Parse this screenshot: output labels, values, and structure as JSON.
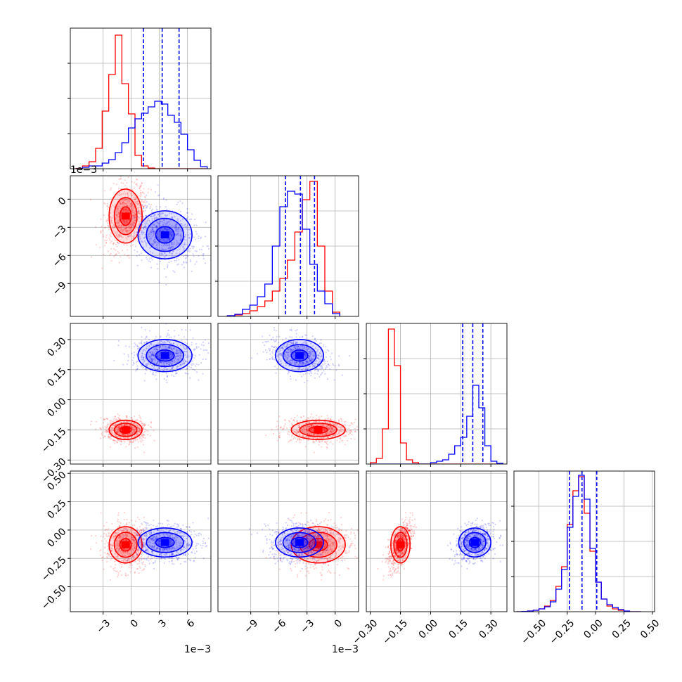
{
  "chart_data": {
    "type": "corner",
    "colors": {
      "red": "#ff0000",
      "blue": "#0000ff",
      "grid": "#b0b0b0",
      "axis": "#000000"
    },
    "series": [
      {
        "color": "red"
      },
      {
        "color": "blue"
      }
    ],
    "parameters": [
      {
        "range": [
          -0.0065,
          0.0085
        ],
        "ticks": [
          -3,
          0,
          3,
          6
        ],
        "tick_labels": [
          "−3",
          "0",
          "3",
          "6"
        ],
        "tick_scale": 0.001,
        "offset_label": "1e−3"
      },
      {
        "range": [
          -0.0125,
          0.0025
        ],
        "ticks": [
          -9,
          -6,
          -3,
          0
        ],
        "tick_labels": [
          "−9",
          "−6",
          "−3",
          "0"
        ],
        "tick_scale": 0.001,
        "offset_label": "1e−3"
      },
      {
        "range": [
          -0.32,
          0.38
        ],
        "ticks": [
          -0.3,
          -0.15,
          0.0,
          0.15,
          0.3
        ],
        "tick_labels": [
          "−0.30",
          "−0.15",
          "0.00",
          "0.15",
          "0.30"
        ],
        "tick_scale": 1,
        "offset_label": ""
      },
      {
        "range": [
          -0.72,
          0.52
        ],
        "ticks": [
          -0.5,
          -0.25,
          0.0,
          0.25,
          0.5
        ],
        "tick_labels": [
          "−0.50",
          "−0.25",
          "0.00",
          "0.25",
          "0.50"
        ],
        "tick_scale": 1,
        "offset_label": ""
      }
    ],
    "quantile_lines": [
      [
        0.0013,
        0.0033,
        0.0051
      ],
      [
        -0.0053,
        -0.0037,
        -0.0022
      ],
      [
        0.16,
        0.21,
        0.26
      ],
      [
        -0.23,
        -0.12,
        0.01
      ]
    ],
    "histograms": {
      "0": {
        "bin_edges": [
          -0.0059,
          -0.0052,
          -0.0045,
          -0.0038,
          -0.0031,
          -0.0024,
          -0.0017,
          -0.001,
          -0.0003,
          0.0004,
          0.0011,
          0.0018,
          0.0025,
          0.0032,
          0.0039,
          0.0046,
          0.0053,
          0.006,
          0.0067,
          0.0074,
          0.0081
        ],
        "red": [
          0.002,
          0.02,
          0.05,
          0.145,
          0.41,
          0.67,
          0.95,
          0.605,
          0.39,
          0.095,
          0.02,
          0.005,
          0,
          0,
          0,
          0,
          0,
          0,
          0,
          0
        ],
        "blue": [
          0,
          0.01,
          0.02,
          0.02,
          0.04,
          0.065,
          0.115,
          0.185,
          0.29,
          0.355,
          0.395,
          0.44,
          0.48,
          0.46,
          0.38,
          0.33,
          0.245,
          0.135,
          0.06,
          0.015
        ]
      },
      "1": {
        "bin_edges": [
          -0.0115,
          -0.0107,
          -0.0099,
          -0.0091,
          -0.0083,
          -0.0075,
          -0.0067,
          -0.0059,
          -0.0051,
          -0.0043,
          -0.0035,
          -0.0027,
          -0.0019,
          -0.0011,
          -0.0003,
          0.0005
        ],
        "blue": [
          0.005,
          0.015,
          0.05,
          0.08,
          0.14,
          0.23,
          0.5,
          0.78,
          0.89,
          0.87,
          0.62,
          0.37,
          0.18,
          0.09,
          0.02
        ],
        "red": [
          0.005,
          0.01,
          0.02,
          0.04,
          0.07,
          0.11,
          0.18,
          0.27,
          0.4,
          0.6,
          0.83,
          0.96,
          0.5,
          0.18,
          0.03
        ]
      },
      "2": {
        "bin_edges": [
          -0.3,
          -0.27,
          -0.24,
          -0.21,
          -0.18,
          -0.15,
          -0.12,
          -0.09,
          -0.06,
          -0.03,
          0.0,
          0.03,
          0.06,
          0.09,
          0.12,
          0.15,
          0.18,
          0.21,
          0.24,
          0.27,
          0.3,
          0.33,
          0.36
        ],
        "red": [
          0.01,
          0.04,
          0.25,
          0.96,
          0.7,
          0.15,
          0.03,
          0.01,
          0,
          0,
          0,
          0,
          0,
          0,
          0,
          0,
          0,
          0,
          0,
          0,
          0,
          0
        ],
        "blue": [
          0,
          0,
          0,
          0,
          0,
          0,
          0,
          0,
          0,
          0,
          0.01,
          0.02,
          0.03,
          0.07,
          0.13,
          0.19,
          0.34,
          0.56,
          0.4,
          0.13,
          0.02,
          0.005
        ]
      },
      "3": {
        "bin_edges": [
          -0.7,
          -0.65,
          -0.6,
          -0.55,
          -0.5,
          -0.45,
          -0.4,
          -0.35,
          -0.3,
          -0.25,
          -0.2,
          -0.15,
          -0.1,
          -0.05,
          0.0,
          0.05,
          0.1,
          0.15,
          0.2,
          0.25,
          0.3,
          0.35,
          0.4
        ],
        "red": [
          0,
          0.002,
          0.005,
          0.01,
          0.02,
          0.04,
          0.08,
          0.18,
          0.32,
          0.62,
          0.86,
          0.96,
          0.7,
          0.43,
          0.21,
          0.09,
          0.04,
          0.02,
          0.01,
          0,
          0,
          0
        ],
        "blue": [
          0,
          0.002,
          0.005,
          0.01,
          0.02,
          0.035,
          0.07,
          0.16,
          0.3,
          0.6,
          0.82,
          0.97,
          0.8,
          0.45,
          0.21,
          0.09,
          0.05,
          0.03,
          0.015,
          0.005,
          0,
          0
        ]
      }
    },
    "distributions": {
      "red": {
        "mean": [
          -0.0006,
          -0.0018,
          -0.15,
          -0.13
        ],
        "std": [
          0.0011,
          0.0018,
          0.03,
          0.1
        ]
      },
      "blue": {
        "mean": [
          0.0036,
          -0.0038,
          0.22,
          -0.11
        ],
        "std": [
          0.0018,
          0.0016,
          0.05,
          0.08
        ]
      }
    },
    "grid": true
  }
}
